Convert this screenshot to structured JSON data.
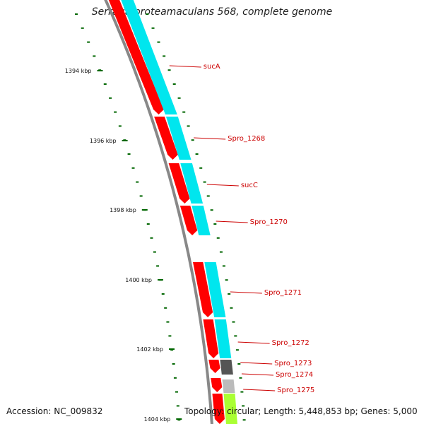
{
  "title": "Serratia proteamaculans 568, complete genome",
  "accession": "Accession: NC_009832",
  "summary": "Topology: circular; Length: 5,448,853 bp; Genes: 5,000",
  "colors": {
    "backbone": "#888888",
    "cds_red": "#ff0000",
    "cds_cyan": "#00e6ee",
    "tick_green": "#006600",
    "label_red": "#cc0000",
    "dark_gray": "#555555",
    "light_gray": "#bbbbbb",
    "lime": "#aaff33"
  },
  "ticks": [
    {
      "label": "1394 kbp"
    },
    {
      "label": "1396 kbp"
    },
    {
      "label": "1398 kbp"
    },
    {
      "label": "1400 kbp"
    },
    {
      "label": "1402 kbp"
    },
    {
      "label": "1404 kbp"
    }
  ],
  "genes": [
    {
      "label": "sucA"
    },
    {
      "label": "Spro_1268"
    },
    {
      "label": "sucC"
    },
    {
      "label": "Spro_1270"
    },
    {
      "label": "Spro_1271"
    },
    {
      "label": "Spro_1272"
    },
    {
      "label": "Spro_1273"
    },
    {
      "label": "Spro_1274"
    },
    {
      "label": "Spro_1275"
    }
  ]
}
